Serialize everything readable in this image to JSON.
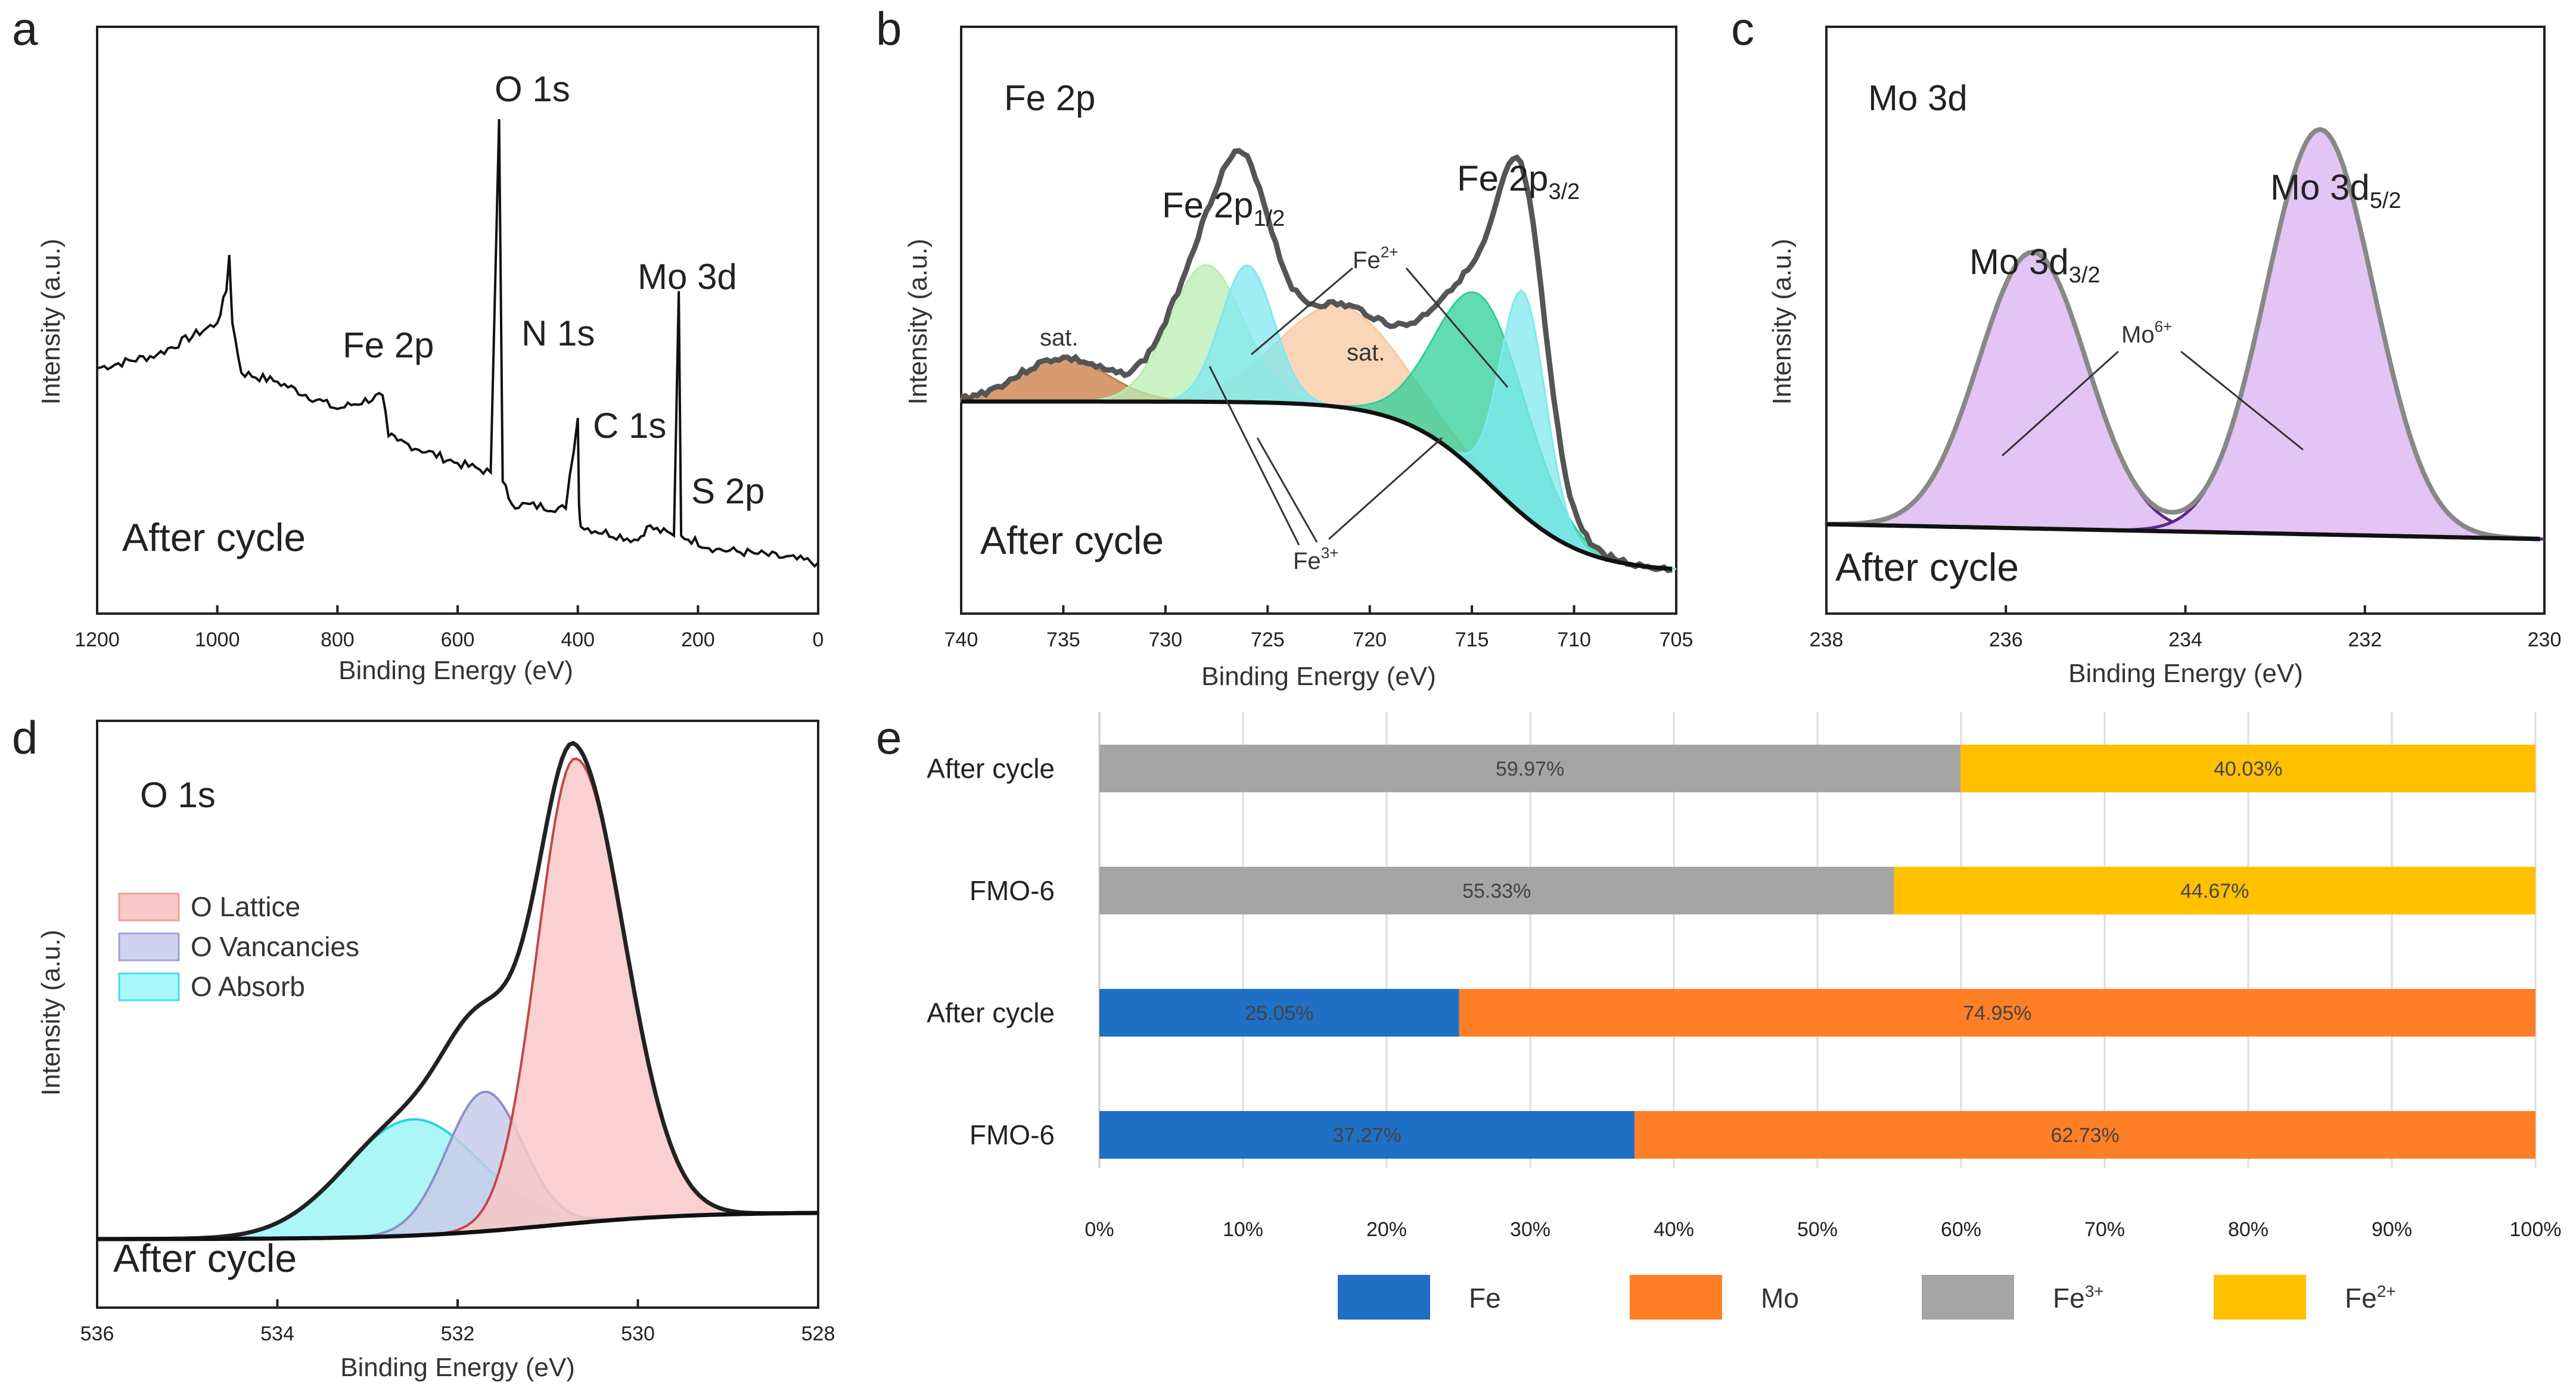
{
  "colors": {
    "fe": "#1f6fc5",
    "mo": "#ff7f27",
    "fe3": "#a5a5a5",
    "fe2": "#ffc000",
    "green": "#2ecf9a",
    "lightgreen": "#b8eeb0",
    "cyan": "#7fe8f0",
    "orange_fill": "#f8c8a0",
    "brown": "#c87a40",
    "purple": "#d9a8f0",
    "pink": "#f5a5a5",
    "lavender": "#b6b8e0",
    "aqua": "#6ff0f0"
  },
  "panels": {
    "a": {
      "letter": "a",
      "ylabel": "Intensity (a.u.)",
      "xlabel": "Binding Energy (eV)",
      "note": "After cycle",
      "peaks": [
        "O 1s",
        "Mo 3d",
        "Fe 2p",
        "N 1s",
        "C 1s",
        "S 2p"
      ]
    },
    "b": {
      "letter": "b",
      "title": "Fe 2p",
      "ylabel": "Intensity (a.u.)",
      "xlabel": "Binding Energy (eV)",
      "note": "After cycle",
      "fe2p12": "Fe 2p",
      "fe2p12_sub": "1/2",
      "fe2p32": "Fe 2p",
      "fe2p32_sub": "3/2",
      "fe2plus": "Fe",
      "fe2plus_sup": "2+",
      "fe3plus": "Fe",
      "fe3plus_sup": "3+",
      "sat1": "sat.",
      "sat2": "sat."
    },
    "c": {
      "letter": "c",
      "title": "Mo 3d",
      "ylabel": "Intensity (a.u.)",
      "xlabel": "Binding Energy (eV)",
      "note": "After cycle",
      "mo32": "Mo 3d",
      "mo32_sub": "3/2",
      "mo52": "Mo 3d",
      "mo52_sub": "5/2",
      "mo6": "Mo",
      "mo6_sup": "6+"
    },
    "d": {
      "letter": "d",
      "title": "O 1s",
      "ylabel": "Intensity (a.u.)",
      "xlabel": "Binding Energy (eV)",
      "note": "After cycle",
      "legend": [
        "O Lattice",
        "O Vancancies",
        "O Absorb"
      ]
    },
    "e": {
      "letter": "e"
    }
  },
  "chart_data": [
    {
      "type": "line",
      "panel": "a",
      "title": "",
      "xlabel": "Binding Energy (eV)",
      "ylabel": "Intensity (a.u.)",
      "xlim": [
        1200,
        0
      ],
      "xticks": [
        "1200",
        "1000",
        "800",
        "600",
        "400",
        "200",
        "0"
      ],
      "annotations": [
        "O 1s",
        "Mo 3d",
        "Fe 2p",
        "N 1s",
        "C 1s",
        "S 2p",
        "After cycle"
      ],
      "series": [
        {
          "name": "survey",
          "x": [
            1200,
            1100,
            1000,
            985,
            980,
            975,
            960,
            900,
            800,
            725,
            715,
            700,
            600,
            545,
            531,
            525,
            510,
            420,
            400,
            398,
            395,
            300,
            285,
            240,
            232,
            228,
            170,
            100,
            0
          ],
          "y": [
            0.45,
            0.48,
            0.55,
            0.62,
            0.7,
            0.55,
            0.44,
            0.42,
            0.36,
            0.39,
            0.3,
            0.29,
            0.24,
            0.22,
            1.0,
            0.2,
            0.15,
            0.14,
            0.34,
            0.15,
            0.1,
            0.07,
            0.1,
            0.08,
            0.62,
            0.08,
            0.05,
            0.04,
            0.02
          ]
        }
      ]
    },
    {
      "type": "line",
      "panel": "b",
      "title": "Fe 2p",
      "xlabel": "Binding Energy (eV)",
      "ylabel": "Intensity (a.u.)",
      "xlim": [
        740,
        705
      ],
      "xticks": [
        "740",
        "735",
        "730",
        "725",
        "720",
        "715",
        "710",
        "705"
      ],
      "components": [
        {
          "name": "Fe 2p3/2 Fe2+",
          "center": 712.5,
          "height": 0.62
        },
        {
          "name": "Fe 2p3/2 Fe3+",
          "center": 714.5,
          "height": 0.5
        },
        {
          "name": "Fe 2p1/2 Fe2+",
          "center": 726.0,
          "height": 0.38
        },
        {
          "name": "Fe 2p1/2 Fe3+",
          "center": 728.0,
          "height": 0.38
        },
        {
          "name": "sat.",
          "center": 721.5,
          "height": 0.28
        },
        {
          "name": "sat.",
          "center": 735.0,
          "height": 0.12
        }
      ]
    },
    {
      "type": "line",
      "panel": "c",
      "title": "Mo 3d",
      "xlabel": "Binding Energy (eV)",
      "ylabel": "Intensity (a.u.)",
      "xlim": [
        238,
        230
      ],
      "xticks": [
        "238",
        "236",
        "234",
        "232",
        "230"
      ],
      "components": [
        {
          "name": "Mo 3d3/2 Mo6+",
          "center": 235.7,
          "height": 0.58
        },
        {
          "name": "Mo 3d5/2 Mo6+",
          "center": 232.5,
          "height": 0.85
        }
      ]
    },
    {
      "type": "line",
      "panel": "d",
      "title": "O 1s",
      "xlabel": "Binding Energy (eV)",
      "ylabel": "Intensity (a.u.)",
      "xlim": [
        536,
        528
      ],
      "xticks": [
        "536",
        "534",
        "532",
        "530",
        "528"
      ],
      "legend": [
        "O Lattice",
        "O Vancancies",
        "O Absorb"
      ],
      "components": [
        {
          "name": "O Lattice",
          "center": 530.7,
          "height": 1.0
        },
        {
          "name": "O Vancancies",
          "center": 531.7,
          "height": 0.3
        },
        {
          "name": "O Absorb",
          "center": 532.5,
          "height": 0.25
        }
      ]
    },
    {
      "type": "bar",
      "orientation": "horizontal",
      "stacked": true,
      "panel": "e",
      "categories": [
        "After cycle",
        "FMO-6",
        "After cycle",
        "FMO-6"
      ],
      "xticks": [
        "0%",
        "10%",
        "20%",
        "30%",
        "40%",
        "50%",
        "60%",
        "70%",
        "80%",
        "90%",
        "100%"
      ],
      "bars": [
        {
          "category": "After cycle",
          "segments": [
            {
              "name": "Fe³⁺",
              "value": 59.97,
              "label": "59.97%"
            },
            {
              "name": "Fe²⁺",
              "value": 40.03,
              "label": "40.03%"
            }
          ]
        },
        {
          "category": "FMO-6",
          "segments": [
            {
              "name": "Fe³⁺",
              "value": 55.33,
              "label": "55.33%"
            },
            {
              "name": "Fe²⁺",
              "value": 44.67,
              "label": "44.67%"
            }
          ]
        },
        {
          "category": "After cycle",
          "segments": [
            {
              "name": "Fe",
              "value": 25.05,
              "label": "25.05%"
            },
            {
              "name": "Mo",
              "value": 74.95,
              "label": "74.95%"
            }
          ]
        },
        {
          "category": "FMO-6",
          "segments": [
            {
              "name": "Fe",
              "value": 37.27,
              "label": "37.27%"
            },
            {
              "name": "Mo",
              "value": 62.73,
              "label": "62.73%"
            }
          ]
        }
      ],
      "legend": [
        {
          "name": "Fe",
          "base": "Fe",
          "sup": ""
        },
        {
          "name": "Mo",
          "base": "Mo",
          "sup": ""
        },
        {
          "name": "Fe3+",
          "base": "Fe",
          "sup": "3+"
        },
        {
          "name": "Fe2+",
          "base": "Fe",
          "sup": "2+"
        }
      ]
    }
  ]
}
